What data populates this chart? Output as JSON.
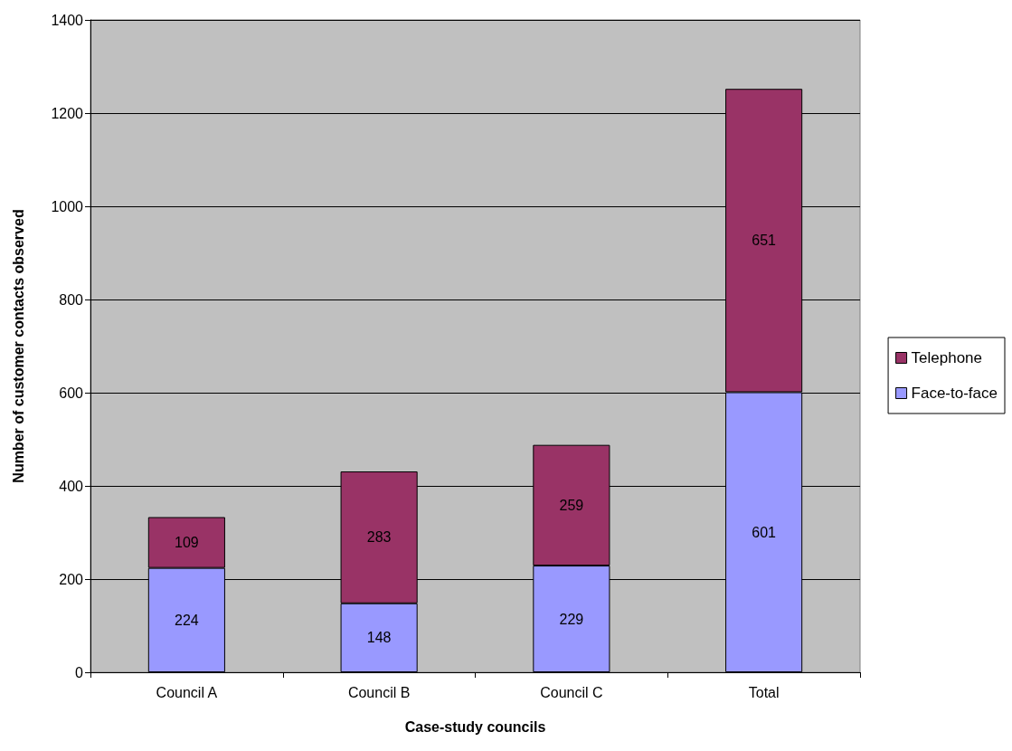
{
  "chart_data": {
    "type": "bar",
    "xlabel": "Case-study councils",
    "ylabel": "Number of customer contacts observed",
    "categories": [
      "Council A",
      "Council B",
      "Council C",
      "Total"
    ],
    "series": [
      {
        "name": "Face-to-face",
        "color": "#9999ff",
        "values": [
          224,
          148,
          229,
          601
        ]
      },
      {
        "name": "Telephone",
        "color": "#993366",
        "values": [
          109,
          283,
          259,
          651
        ]
      }
    ],
    "stacked": true,
    "data_labels": true,
    "ylim": [
      0,
      1400
    ],
    "yticks": [
      0,
      200,
      400,
      600,
      800,
      1000,
      1200,
      1400
    ],
    "grid": "y",
    "legend": "right"
  }
}
